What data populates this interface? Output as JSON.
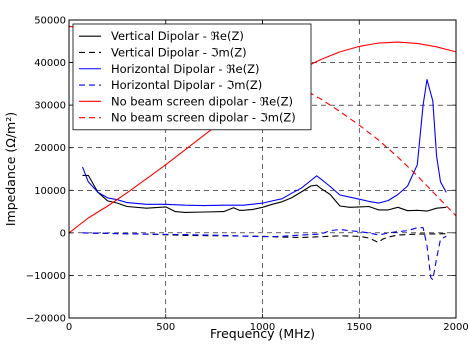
{
  "chart_data": {
    "type": "line",
    "title": "",
    "xlabel": "Frequency (MHz)",
    "ylabel": "Impedance (Ω/m²)",
    "xlim": [
      0,
      2000
    ],
    "ylim": [
      -20000,
      50000
    ],
    "xticks": [
      0,
      500,
      1000,
      1500,
      2000
    ],
    "xtick_labels": [
      "0",
      "500",
      "1000",
      "1500",
      "2000"
    ],
    "yticks": [
      -20000,
      -10000,
      0,
      10000,
      20000,
      30000,
      40000,
      50000
    ],
    "ytick_labels": [
      "−20000",
      "−10000",
      "0",
      "10000",
      "20000",
      "30000",
      "40000",
      "50000"
    ],
    "grid": true,
    "legend_position": "top-left",
    "series": [
      {
        "name": "Vertical Dipolar - ℜe(Z)",
        "color": "#000000",
        "dash": "solid",
        "x": [
          70,
          100,
          150,
          200,
          250,
          300,
          400,
          500,
          550,
          600,
          700,
          800,
          850,
          880,
          900,
          950,
          1000,
          1050,
          1100,
          1150,
          1200,
          1250,
          1280,
          1300,
          1350,
          1400,
          1450,
          1500,
          1550,
          1600,
          1650,
          1700,
          1750,
          1800,
          1850,
          1900,
          1950
        ],
        "y": [
          13500,
          13500,
          9500,
          7500,
          7000,
          6200,
          5800,
          6100,
          5000,
          4800,
          4900,
          5000,
          5900,
          5300,
          5300,
          5500,
          6000,
          6700,
          7300,
          8200,
          9600,
          11000,
          11200,
          10500,
          9000,
          6300,
          6000,
          6100,
          6200,
          5400,
          5400,
          6000,
          5200,
          5300,
          5100,
          5800,
          6000
        ]
      },
      {
        "name": "Vertical Dipolar - ℑm(Z)",
        "color": "#000000",
        "dash": "dashed",
        "x": [
          70,
          200,
          400,
          600,
          800,
          1000,
          1100,
          1200,
          1300,
          1400,
          1500,
          1550,
          1600,
          1620,
          1650,
          1700,
          1800,
          1900,
          1950
        ],
        "y": [
          0,
          -150,
          -300,
          -600,
          -700,
          -800,
          -1000,
          -1100,
          -900,
          -700,
          -800,
          -1200,
          -2300,
          -1500,
          -1000,
          -500,
          -300,
          -250,
          -200
        ]
      },
      {
        "name": "Horizontal Dipolar - ℜe(Z)",
        "color": "#0000ff",
        "dash": "solid",
        "x": [
          70,
          100,
          150,
          200,
          250,
          300,
          400,
          500,
          600,
          700,
          800,
          900,
          1000,
          1050,
          1100,
          1150,
          1200,
          1250,
          1280,
          1300,
          1350,
          1400,
          1450,
          1500,
          1550,
          1600,
          1650,
          1700,
          1750,
          1800,
          1830,
          1850,
          1880,
          1900,
          1920,
          1950
        ],
        "y": [
          15500,
          12000,
          9500,
          8200,
          7800,
          7100,
          6700,
          6700,
          6500,
          6400,
          6500,
          6500,
          7000,
          7500,
          8000,
          9300,
          10500,
          12300,
          13400,
          12700,
          10900,
          8900,
          8400,
          7900,
          7400,
          7000,
          7600,
          9000,
          11000,
          16000,
          30000,
          36000,
          31000,
          18000,
          12000,
          9500
        ]
      },
      {
        "name": "Horizontal Dipolar - ℑm(Z)",
        "color": "#0000ff",
        "dash": "dashed",
        "x": [
          70,
          200,
          400,
          600,
          800,
          1000,
          1100,
          1200,
          1300,
          1350,
          1400,
          1450,
          1500,
          1550,
          1600,
          1650,
          1700,
          1750,
          1800,
          1830,
          1850,
          1870,
          1880,
          1900,
          1920,
          1950
        ],
        "y": [
          0,
          -100,
          -300,
          -400,
          -600,
          -900,
          -800,
          -500,
          -300,
          500,
          800,
          500,
          300,
          0,
          -500,
          0,
          300,
          500,
          1200,
          1200,
          -3000,
          -10500,
          -11000,
          -6000,
          -1500,
          -800
        ]
      },
      {
        "name": "No beam screen dipolar - ℜe(Z)",
        "color": "#ff0000",
        "dash": "solid",
        "x": [
          0,
          100,
          200,
          300,
          400,
          500,
          600,
          700,
          800,
          900,
          1000,
          1100,
          1200,
          1300,
          1400,
          1500,
          1600,
          1700,
          1800,
          1900,
          2000
        ],
        "y": [
          0,
          3500,
          6300,
          9400,
          12700,
          16000,
          19500,
          23000,
          26500,
          30000,
          33000,
          36000,
          38500,
          40700,
          42500,
          43800,
          44600,
          44800,
          44500,
          43700,
          42500
        ]
      },
      {
        "name": "No beam screen dipolar - ℑm(Z)",
        "color": "#ff0000",
        "dash": "dashed",
        "x": [
          0,
          100,
          200,
          300,
          400,
          500,
          600,
          700,
          800,
          900,
          1000,
          1100,
          1200,
          1300,
          1400,
          1500,
          1600,
          1700,
          1800,
          1900,
          2000
        ],
        "y": [
          48500,
          48000,
          47500,
          47000,
          46200,
          45300,
          44300,
          43000,
          41600,
          40000,
          38200,
          36200,
          34000,
          31500,
          28500,
          25300,
          21800,
          17800,
          13400,
          8700,
          4000
        ]
      }
    ]
  }
}
